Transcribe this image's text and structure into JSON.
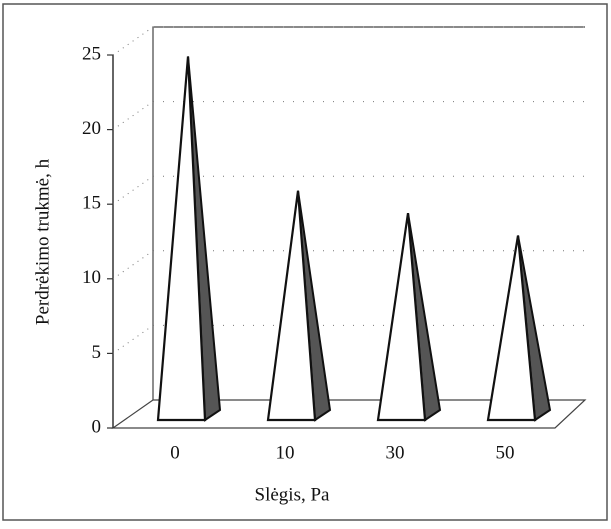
{
  "chart_data": {
    "type": "pyramid3d",
    "y_label": "Perdrėkimo trukmė, h",
    "x_label": "Slėgis, Pa",
    "categories": [
      "0",
      "10",
      "30",
      "50"
    ],
    "values": [
      24.5,
      15.5,
      14,
      12.5
    ],
    "ylim": [
      0,
      25
    ],
    "yticks": [
      0,
      5,
      10,
      15,
      20,
      25
    ],
    "grid": true,
    "color": "#ffffff",
    "side_color": "#555555"
  }
}
